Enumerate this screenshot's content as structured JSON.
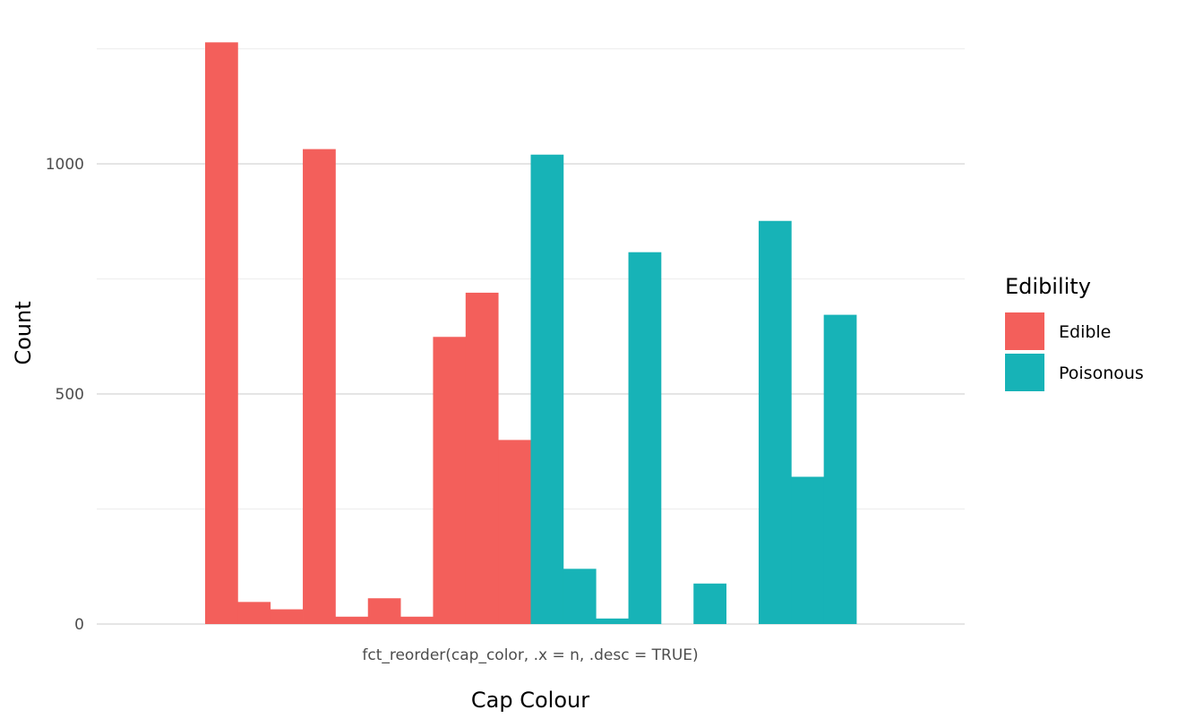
{
  "chart_data": {
    "type": "bar",
    "layout": "grouped-dodge",
    "xlabel": "Cap Colour",
    "ylabel": "Count",
    "x_tick_label": "fct_reorder(cap_color, .x = n, .desc = TRUE)",
    "ylim": [
      0,
      1270
    ],
    "yticks": [
      0,
      500,
      1000
    ],
    "grid": true,
    "legend": {
      "title": "Edibility",
      "placement": "right"
    },
    "series": [
      {
        "name": "Edible",
        "color": "#F35F5B",
        "values": [
          1264,
          48,
          32,
          1032,
          16,
          56,
          16,
          624,
          720,
          400,
          0,
          0,
          0,
          0,
          0,
          0,
          0,
          0,
          0,
          0
        ]
      },
      {
        "name": "Poisonous",
        "color": "#17B3B7",
        "values": [
          0,
          0,
          0,
          0,
          0,
          0,
          0,
          0,
          0,
          0,
          1020,
          120,
          12,
          808,
          0,
          88,
          0,
          876,
          320,
          672
        ]
      }
    ]
  }
}
